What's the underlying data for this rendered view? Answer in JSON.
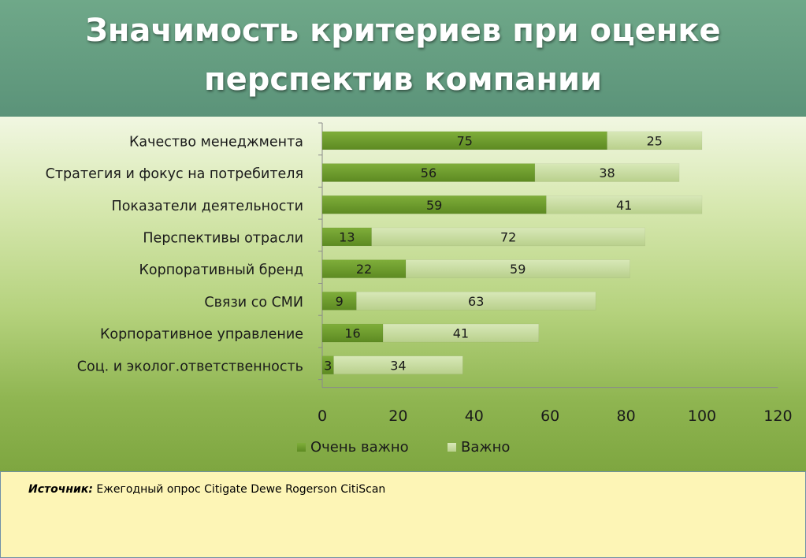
{
  "title": {
    "line1": "Значимость критериев при оценке",
    "line2": "перспектив компании"
  },
  "chart_data": {
    "type": "bar",
    "orientation": "horizontal",
    "stacked": true,
    "categories": [
      "Качество менеджмента",
      "Стратегия и фокус на потребителя",
      "Показатели деятельности",
      "Перспективы отрасли",
      "Корпоративный бренд",
      "Связи со СМИ",
      "Корпоративное управление",
      "Соц. и эколог.ответственность"
    ],
    "series": [
      {
        "name": "Очень важно",
        "values": [
          75,
          56,
          59,
          13,
          22,
          9,
          16,
          3
        ],
        "color": "#6c9a2c"
      },
      {
        "name": "Важно",
        "values": [
          25,
          38,
          41,
          72,
          59,
          63,
          41,
          34
        ],
        "color": "#c6dba0"
      }
    ],
    "xlim": [
      0,
      120
    ],
    "xticks": [
      "0",
      "20",
      "40",
      "60",
      "80",
      "100",
      "120"
    ],
    "grid": false,
    "legend_position": "bottom"
  },
  "source": {
    "label": "Источник:",
    "text": "Ежегодный опрос Citigate Dewe Rogerson CitiScan"
  }
}
